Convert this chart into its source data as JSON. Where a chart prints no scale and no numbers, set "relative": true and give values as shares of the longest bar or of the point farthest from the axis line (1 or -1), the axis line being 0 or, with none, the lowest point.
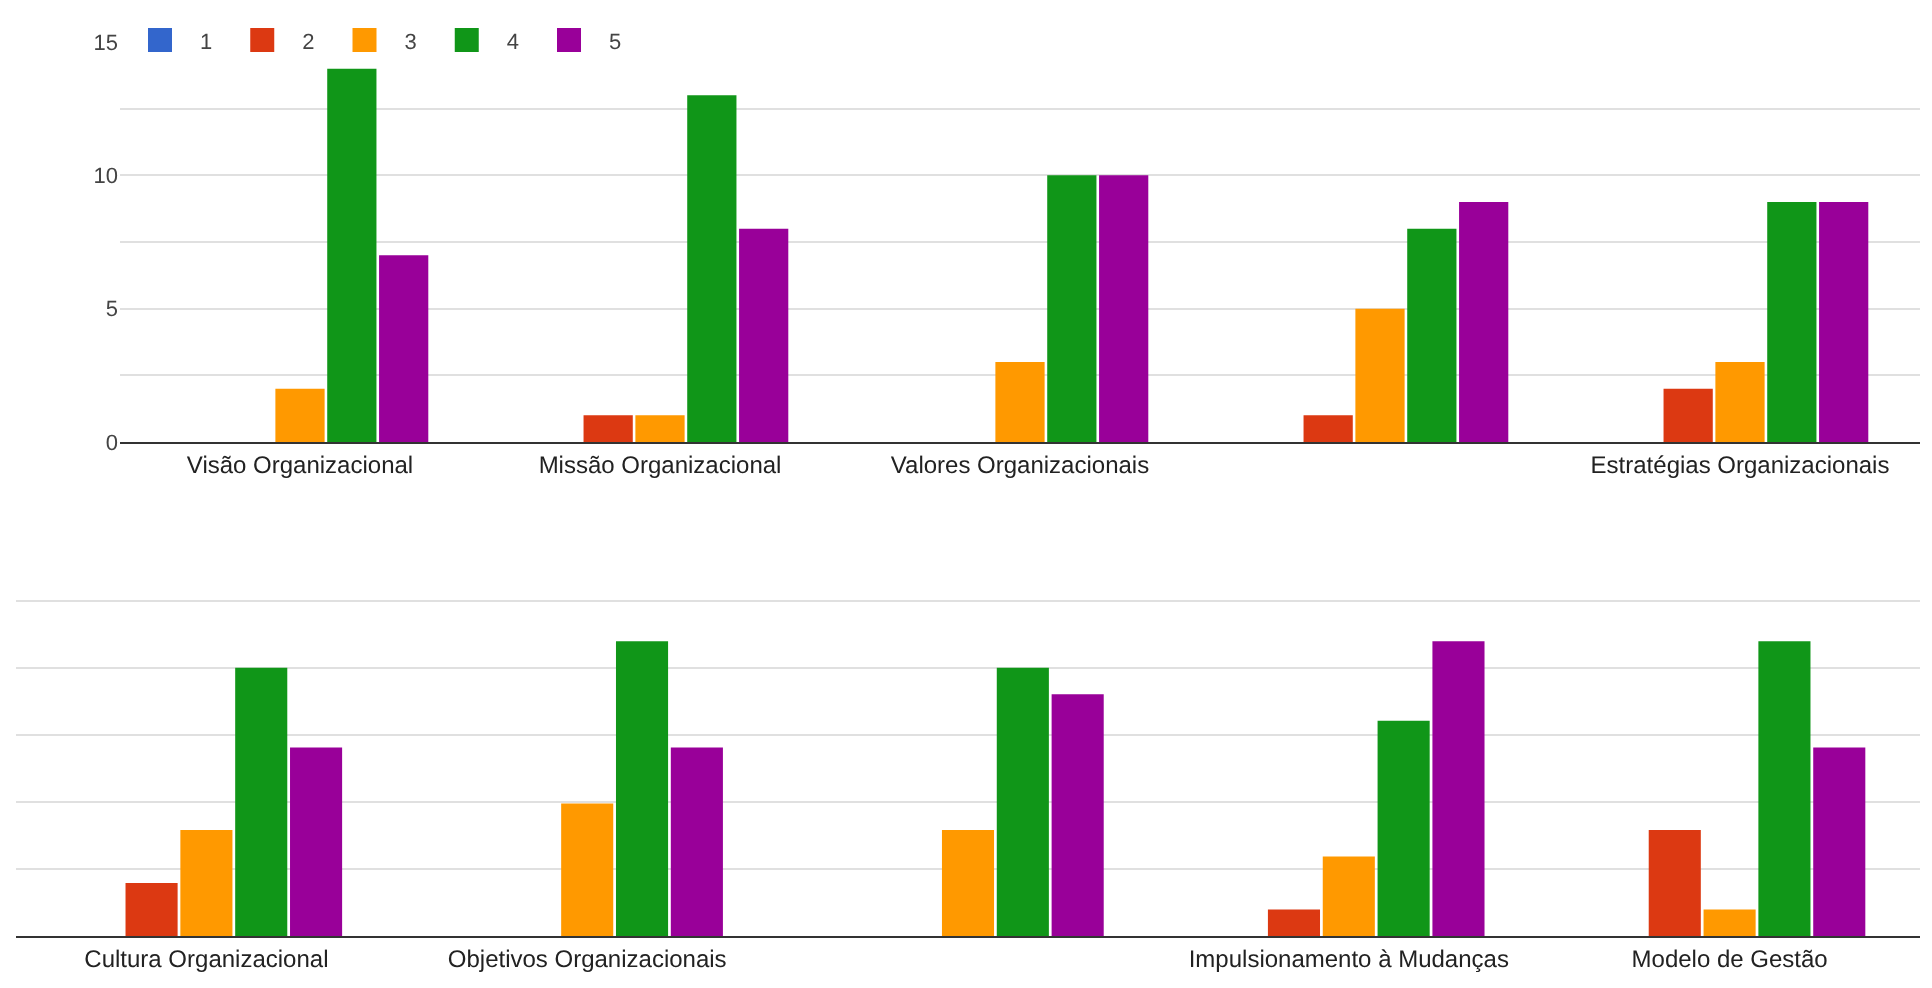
{
  "chart_data": [
    {
      "type": "bar",
      "categories": [
        "Visão Organizacional",
        "Missão Organizacional",
        "Valores Organizacionais",
        null,
        "Estratégias Organizacionais"
      ],
      "series": [
        {
          "name": "1",
          "color": "#3366cc",
          "values": [
            0,
            0,
            0,
            0,
            0
          ]
        },
        {
          "name": "2",
          "color": "#dc3912",
          "values": [
            0,
            1,
            0,
            1,
            2
          ]
        },
        {
          "name": "3",
          "color": "#ff9900",
          "values": [
            2,
            1,
            3,
            5,
            3
          ]
        },
        {
          "name": "4",
          "color": "#109618",
          "values": [
            14,
            13,
            10,
            8,
            9
          ]
        },
        {
          "name": "5",
          "color": "#990099",
          "values": [
            7,
            8,
            10,
            9,
            9
          ]
        }
      ],
      "ylim": [
        0,
        15
      ],
      "yticks": [
        0,
        {
          "value": 2.5,
          "label": null
        },
        5,
        {
          "value": 7.5,
          "label": null
        },
        10,
        {
          "value": 12.5,
          "label": null
        },
        15
      ],
      "grid": "y",
      "legend": "top left"
    },
    {
      "type": "bar",
      "relative": true,
      "categories": [
        "Cultura Organizacional",
        "Objetivos Organizacionais",
        null,
        "Impulsionamento à Mudanças",
        "Modelo de Gestão"
      ],
      "series": [
        {
          "color": "#3366cc",
          "values": [
            0,
            0,
            0,
            0,
            0
          ]
        },
        {
          "color": "#dc3912",
          "values": [
            0.18,
            0,
            0,
            0.09,
            0.36
          ]
        },
        {
          "color": "#ff9900",
          "values": [
            0.36,
            0.45,
            0.36,
            0.27,
            0.09
          ]
        },
        {
          "color": "#109618",
          "values": [
            0.91,
            1,
            0.91,
            0.73,
            1
          ]
        },
        {
          "color": "#990099",
          "values": [
            0.64,
            0.64,
            0.82,
            1,
            0.64
          ]
        }
      ],
      "grid": "y",
      "legend": false
    }
  ]
}
